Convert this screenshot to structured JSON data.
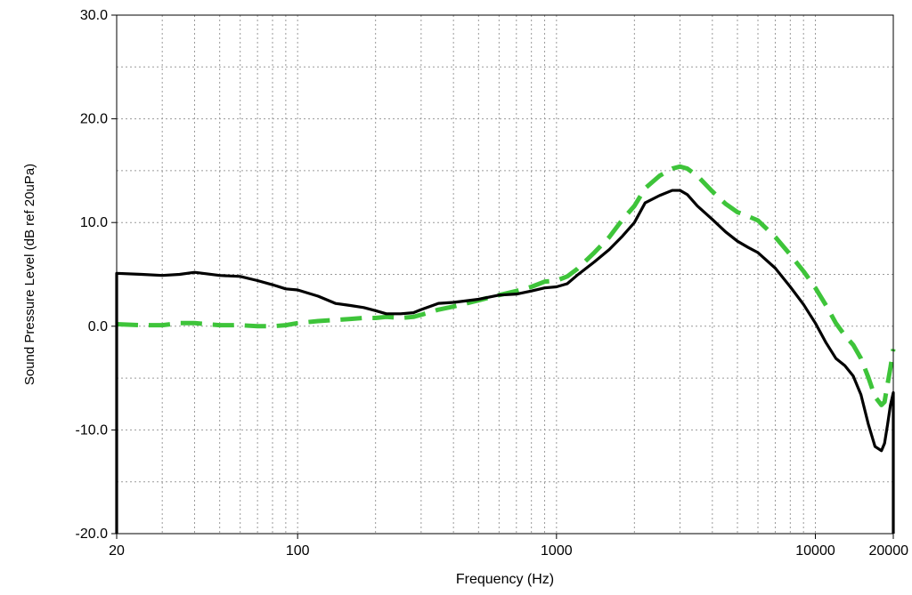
{
  "chart_data": {
    "type": "line",
    "xlabel": "Frequency (Hz)",
    "ylabel": "Sound Pressure Level (dB ref 20uPa)",
    "x_scale": "log",
    "xlim": [
      20,
      20000
    ],
    "ylim": [
      -20,
      30
    ],
    "grid": true,
    "x_tick_labels": [
      "20",
      "100",
      "1000",
      "10000",
      "20000"
    ],
    "x_tick_values": [
      20,
      100,
      1000,
      10000,
      20000
    ],
    "y_tick_labels": [
      "30.0",
      "20.0",
      "10.0",
      "0.0",
      "-10.0",
      "-20.0"
    ],
    "y_tick_values": [
      30,
      20,
      10,
      0,
      -10,
      -20
    ],
    "series": [
      {
        "color": "#000000",
        "style": "solid",
        "x": [
          20,
          20,
          25,
          30,
          35,
          40,
          50,
          60,
          70,
          80,
          90,
          100,
          120,
          140,
          160,
          180,
          200,
          220,
          250,
          280,
          300,
          350,
          400,
          500,
          600,
          700,
          800,
          900,
          1000,
          1100,
          1200,
          1400,
          1600,
          1800,
          2000,
          2200,
          2500,
          2800,
          3000,
          3200,
          3500,
          4000,
          4500,
          5000,
          5500,
          6000,
          7000,
          8000,
          9000,
          10000,
          11000,
          12000,
          13000,
          14000,
          15000,
          16000,
          17000,
          18000,
          18500,
          19000,
          19500,
          20000,
          20000
        ],
        "y": [
          -20,
          5.1,
          5.0,
          4.9,
          5.0,
          5.2,
          4.9,
          4.8,
          4.4,
          4.0,
          3.6,
          3.5,
          2.9,
          2.2,
          2.0,
          1.8,
          1.5,
          1.2,
          1.2,
          1.3,
          1.6,
          2.2,
          2.3,
          2.6,
          3.0,
          3.1,
          3.4,
          3.7,
          3.8,
          4.1,
          4.9,
          6.2,
          7.4,
          8.7,
          10.0,
          11.9,
          12.6,
          13.1,
          13.1,
          12.7,
          11.6,
          10.3,
          9.1,
          8.2,
          7.6,
          7.1,
          5.6,
          3.8,
          2.1,
          0.3,
          -1.6,
          -3.1,
          -3.8,
          -4.8,
          -6.6,
          -9.4,
          -11.6,
          -12.0,
          -11.3,
          -9.5,
          -7.6,
          -6.4,
          -20
        ]
      },
      {
        "color": "#3ec43a",
        "style": "dashed",
        "x": [
          20,
          25,
          30,
          35,
          40,
          50,
          60,
          70,
          80,
          90,
          100,
          120,
          140,
          160,
          180,
          200,
          220,
          250,
          280,
          300,
          350,
          400,
          500,
          600,
          700,
          800,
          900,
          1000,
          1100,
          1200,
          1400,
          1600,
          1800,
          2000,
          2200,
          2500,
          2800,
          3000,
          3200,
          3500,
          4000,
          4500,
          5000,
          5500,
          6000,
          7000,
          8000,
          9000,
          10000,
          11000,
          12000,
          13000,
          14000,
          15000,
          16000,
          17000,
          18000,
          18500,
          19000,
          19500,
          20000
        ],
        "y": [
          0.2,
          0.1,
          0.1,
          0.3,
          0.3,
          0.1,
          0.1,
          0.0,
          0.0,
          0.1,
          0.3,
          0.5,
          0.6,
          0.7,
          0.8,
          0.8,
          0.9,
          0.8,
          0.9,
          1.1,
          1.6,
          1.9,
          2.5,
          3.0,
          3.4,
          3.8,
          4.3,
          4.4,
          4.8,
          5.5,
          7.1,
          8.6,
          10.3,
          11.6,
          13.3,
          14.5,
          15.2,
          15.4,
          15.2,
          14.5,
          13.0,
          11.8,
          11.0,
          10.6,
          10.2,
          8.6,
          6.9,
          5.3,
          3.7,
          2.0,
          0.3,
          -0.9,
          -1.8,
          -3.1,
          -4.9,
          -6.8,
          -7.6,
          -7.3,
          -5.6,
          -4.0,
          -2.2
        ]
      }
    ]
  }
}
